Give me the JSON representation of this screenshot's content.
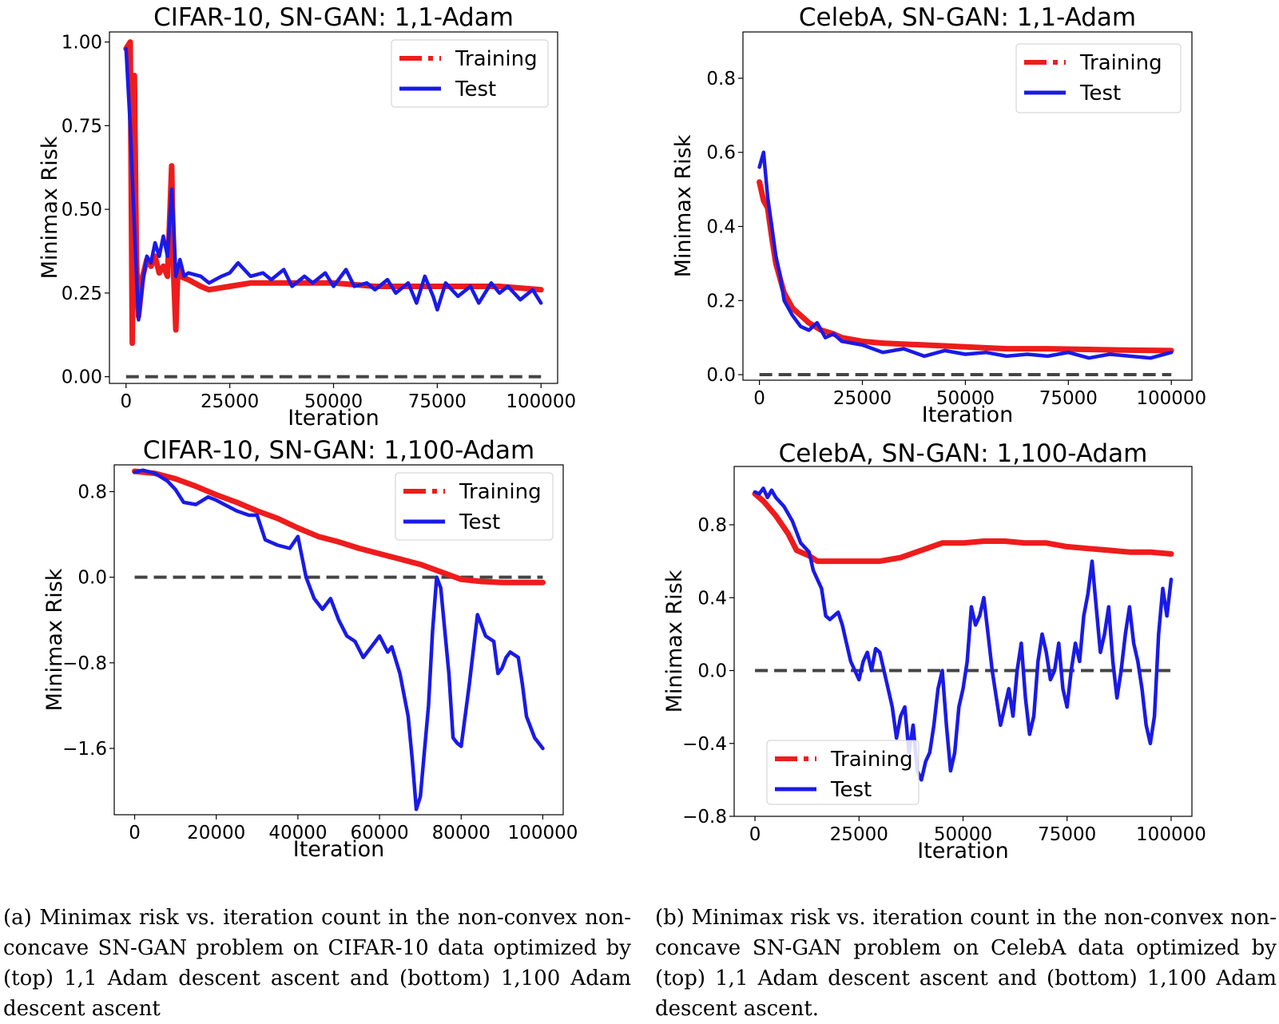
{
  "colors": {
    "training": "#ee1c1c",
    "test": "#1a1ae6",
    "zero_line": "#444444"
  },
  "chart_data": [
    {
      "type": "line",
      "title": "CIFAR-10, SN-GAN: 1,1-Adam",
      "xlabel": "Iteration",
      "ylabel": "Minimax Risk",
      "xlim": [
        -4000,
        104000
      ],
      "ylim": [
        -0.02,
        1.03
      ],
      "xticks": [
        0,
        25000,
        50000,
        75000,
        100000
      ],
      "xtick_labels": [
        "0",
        "25000",
        "50000",
        "75000",
        "100000"
      ],
      "yticks": [
        0.0,
        0.25,
        0.5,
        0.75,
        1.0
      ],
      "ytick_labels": [
        "0.00",
        "0.25",
        "0.50",
        "0.75",
        "1.00"
      ],
      "legend_position": "top-right",
      "zero_line": 0.0,
      "series": [
        {
          "name": "Training",
          "x": [
            0,
            1000,
            1500,
            2000,
            2500,
            3000,
            4000,
            5000,
            6000,
            7000,
            8000,
            9000,
            10000,
            11000,
            11500,
            12000,
            12500,
            13000,
            15000,
            18000,
            20000,
            25000,
            30000,
            40000,
            50000,
            60000,
            70000,
            80000,
            90000,
            100000
          ],
          "y": [
            0.98,
            1.0,
            0.1,
            0.9,
            0.35,
            0.18,
            0.3,
            0.35,
            0.33,
            0.36,
            0.31,
            0.33,
            0.3,
            0.63,
            0.3,
            0.14,
            0.33,
            0.3,
            0.29,
            0.27,
            0.26,
            0.27,
            0.28,
            0.28,
            0.28,
            0.27,
            0.27,
            0.27,
            0.27,
            0.26
          ]
        },
        {
          "name": "Test",
          "x": [
            0,
            1000,
            2000,
            3000,
            4000,
            5000,
            6000,
            7000,
            8000,
            9000,
            10000,
            11000,
            11500,
            12000,
            13000,
            14000,
            15000,
            18000,
            20000,
            23000,
            25000,
            27000,
            30000,
            33000,
            35000,
            38000,
            40000,
            43000,
            45000,
            48000,
            50000,
            53000,
            55000,
            58000,
            60000,
            63000,
            65000,
            68000,
            70000,
            72000,
            74000,
            75000,
            77000,
            80000,
            83000,
            85000,
            88000,
            90000,
            92000,
            95000,
            98000,
            100000
          ],
          "y": [
            0.98,
            0.75,
            0.45,
            0.17,
            0.28,
            0.36,
            0.34,
            0.4,
            0.36,
            0.42,
            0.36,
            0.56,
            0.45,
            0.3,
            0.35,
            0.3,
            0.31,
            0.3,
            0.28,
            0.3,
            0.31,
            0.34,
            0.3,
            0.31,
            0.29,
            0.32,
            0.27,
            0.3,
            0.28,
            0.31,
            0.27,
            0.32,
            0.27,
            0.28,
            0.26,
            0.29,
            0.25,
            0.28,
            0.22,
            0.3,
            0.24,
            0.2,
            0.28,
            0.24,
            0.27,
            0.22,
            0.28,
            0.25,
            0.27,
            0.23,
            0.26,
            0.22
          ]
        }
      ]
    },
    {
      "type": "line",
      "title": "CelebA, SN-GAN: 1,1-Adam",
      "xlabel": "Iteration",
      "ylabel": "Minimax Risk",
      "xlim": [
        -4000,
        105000
      ],
      "ylim": [
        -0.015,
        0.925
      ],
      "xticks": [
        0,
        25000,
        50000,
        75000,
        100000
      ],
      "xtick_labels": [
        "0",
        "25000",
        "50000",
        "75000",
        "100000"
      ],
      "yticks": [
        0.0,
        0.2,
        0.4,
        0.6,
        0.8
      ],
      "ytick_labels": [
        "0.0",
        "0.2",
        "0.4",
        "0.6",
        "0.8"
      ],
      "legend_position": "top-right",
      "zero_line": 0.0,
      "series": [
        {
          "name": "Training",
          "x": [
            0,
            1000,
            2000,
            3000,
            4000,
            6000,
            8000,
            10000,
            12000,
            15000,
            18000,
            20000,
            25000,
            30000,
            40000,
            50000,
            60000,
            70000,
            80000,
            90000,
            100000
          ],
          "y": [
            0.52,
            0.47,
            0.45,
            0.37,
            0.3,
            0.22,
            0.18,
            0.16,
            0.14,
            0.12,
            0.11,
            0.1,
            0.09,
            0.085,
            0.08,
            0.075,
            0.07,
            0.07,
            0.068,
            0.066,
            0.065
          ]
        },
        {
          "name": "Test",
          "x": [
            0,
            1000,
            2000,
            3000,
            4000,
            5000,
            6000,
            8000,
            10000,
            12000,
            14000,
            16000,
            18000,
            20000,
            25000,
            30000,
            35000,
            40000,
            45000,
            50000,
            55000,
            60000,
            65000,
            70000,
            75000,
            80000,
            85000,
            90000,
            95000,
            100000
          ],
          "y": [
            0.56,
            0.6,
            0.48,
            0.4,
            0.32,
            0.27,
            0.2,
            0.16,
            0.13,
            0.12,
            0.14,
            0.1,
            0.11,
            0.09,
            0.08,
            0.06,
            0.07,
            0.05,
            0.065,
            0.055,
            0.06,
            0.05,
            0.055,
            0.05,
            0.06,
            0.045,
            0.055,
            0.05,
            0.045,
            0.06
          ]
        }
      ]
    },
    {
      "type": "line",
      "title": "CIFAR-10, SN-GAN: 1,100-Adam",
      "xlabel": "Iteration",
      "ylabel": "Minimax Risk",
      "xlim": [
        -5000,
        105000
      ],
      "ylim": [
        -2.22,
        1.05
      ],
      "xticks": [
        0,
        20000,
        40000,
        60000,
        80000,
        100000
      ],
      "xtick_labels": [
        "0",
        "20000",
        "40000",
        "60000",
        "80000",
        "100000"
      ],
      "yticks": [
        -1.6,
        -0.8,
        0.0,
        0.8
      ],
      "ytick_labels": [
        "−1.6",
        "−0.8",
        "0.0",
        "0.8"
      ],
      "legend_position": "top-right",
      "zero_line": 0.0,
      "series": [
        {
          "name": "Training",
          "x": [
            0,
            5000,
            10000,
            15000,
            20000,
            25000,
            30000,
            35000,
            40000,
            45000,
            50000,
            55000,
            60000,
            65000,
            70000,
            75000,
            80000,
            85000,
            90000,
            95000,
            100000
          ],
          "y": [
            0.99,
            0.97,
            0.92,
            0.85,
            0.77,
            0.7,
            0.62,
            0.55,
            0.46,
            0.38,
            0.33,
            0.27,
            0.22,
            0.17,
            0.12,
            0.05,
            -0.02,
            -0.04,
            -0.05,
            -0.05,
            -0.05
          ]
        },
        {
          "name": "Test",
          "x": [
            0,
            2000,
            5000,
            8000,
            10000,
            12000,
            15000,
            18000,
            20000,
            22000,
            25000,
            28000,
            30000,
            32000,
            35000,
            38000,
            40000,
            42000,
            44000,
            46000,
            48000,
            50000,
            52000,
            54000,
            56000,
            58000,
            60000,
            62000,
            63000,
            65000,
            67000,
            68000,
            69000,
            70000,
            72000,
            73000,
            74000,
            75000,
            76000,
            77000,
            78000,
            79000,
            80000,
            82000,
            84000,
            85000,
            86000,
            88000,
            89000,
            90000,
            91000,
            92000,
            94000,
            95000,
            96000,
            98000,
            100000
          ],
          "y": [
            0.98,
            1.0,
            0.97,
            0.9,
            0.82,
            0.7,
            0.68,
            0.75,
            0.72,
            0.68,
            0.62,
            0.58,
            0.58,
            0.35,
            0.3,
            0.27,
            0.38,
            0.0,
            -0.2,
            -0.3,
            -0.2,
            -0.4,
            -0.55,
            -0.6,
            -0.75,
            -0.65,
            -0.55,
            -0.7,
            -0.65,
            -0.9,
            -1.3,
            -1.7,
            -2.17,
            -2.05,
            -1.2,
            -0.5,
            0.0,
            -0.1,
            -0.5,
            -0.9,
            -1.5,
            -1.55,
            -1.58,
            -1.0,
            -0.35,
            -0.45,
            -0.55,
            -0.6,
            -0.9,
            -0.85,
            -0.75,
            -0.7,
            -0.75,
            -1.0,
            -1.3,
            -1.5,
            -1.6
          ]
        }
      ]
    },
    {
      "type": "line",
      "title": "CelebA, SN-GAN: 1,100-Adam",
      "xlabel": "Iteration",
      "ylabel": "Minimax Risk",
      "xlim": [
        -5000,
        105000
      ],
      "ylim": [
        -0.8,
        1.12
      ],
      "xticks": [
        0,
        25000,
        50000,
        75000,
        100000
      ],
      "xtick_labels": [
        "0",
        "25000",
        "50000",
        "75000",
        "100000"
      ],
      "yticks": [
        -0.8,
        -0.4,
        0.0,
        0.4,
        0.8
      ],
      "ytick_labels": [
        "−0.8",
        "−0.4",
        "0.0",
        "0.4",
        "0.8"
      ],
      "legend_position": "bottom-left",
      "zero_line": 0.0,
      "series": [
        {
          "name": "Training",
          "x": [
            0,
            2000,
            5000,
            8000,
            10000,
            13000,
            15000,
            20000,
            25000,
            30000,
            35000,
            40000,
            45000,
            50000,
            55000,
            60000,
            65000,
            70000,
            75000,
            80000,
            85000,
            90000,
            95000,
            100000
          ],
          "y": [
            0.97,
            0.93,
            0.85,
            0.75,
            0.66,
            0.63,
            0.6,
            0.6,
            0.6,
            0.6,
            0.62,
            0.66,
            0.7,
            0.7,
            0.71,
            0.71,
            0.7,
            0.7,
            0.68,
            0.67,
            0.66,
            0.65,
            0.65,
            0.64
          ]
        },
        {
          "name": "Test",
          "x": [
            0,
            1000,
            2000,
            3000,
            4000,
            5000,
            7000,
            9000,
            11000,
            13000,
            14000,
            15000,
            16000,
            17000,
            18000,
            20000,
            21000,
            22000,
            23000,
            24000,
            25000,
            26000,
            27000,
            28000,
            29000,
            30000,
            31000,
            32000,
            33000,
            34000,
            35000,
            36000,
            37000,
            38000,
            39000,
            40000,
            41000,
            42000,
            43000,
            44000,
            45000,
            46000,
            47000,
            48000,
            49000,
            50000,
            51000,
            52000,
            53000,
            54000,
            55000,
            56000,
            57000,
            58000,
            59000,
            60000,
            61000,
            62000,
            63000,
            64000,
            65000,
            66000,
            67000,
            68000,
            69000,
            70000,
            71000,
            72000,
            73000,
            74000,
            75000,
            76000,
            77000,
            78000,
            79000,
            80000,
            81000,
            82000,
            83000,
            84000,
            85000,
            86000,
            87000,
            88000,
            89000,
            90000,
            91000,
            92000,
            93000,
            94000,
            95000,
            96000,
            97000,
            98000,
            99000,
            100000
          ],
          "y": [
            0.98,
            0.97,
            1.0,
            0.95,
            0.99,
            0.95,
            0.9,
            0.82,
            0.7,
            0.65,
            0.55,
            0.5,
            0.45,
            0.3,
            0.28,
            0.32,
            0.25,
            0.15,
            0.05,
            0.0,
            -0.05,
            0.05,
            0.1,
            0.0,
            0.12,
            0.1,
            0.0,
            -0.1,
            -0.2,
            -0.37,
            -0.25,
            -0.2,
            -0.45,
            -0.3,
            -0.55,
            -0.6,
            -0.5,
            -0.45,
            -0.3,
            -0.1,
            0.0,
            -0.3,
            -0.55,
            -0.45,
            -0.2,
            -0.1,
            0.05,
            0.35,
            0.25,
            0.3,
            0.4,
            0.2,
            0.0,
            -0.15,
            -0.3,
            -0.2,
            -0.1,
            -0.25,
            0.0,
            0.15,
            -0.15,
            -0.35,
            -0.25,
            0.05,
            0.2,
            0.1,
            -0.05,
            0.0,
            0.15,
            -0.1,
            -0.2,
            0.0,
            0.15,
            0.05,
            0.3,
            0.42,
            0.6,
            0.35,
            0.1,
            0.2,
            0.35,
            0.05,
            -0.15,
            0.0,
            0.2,
            0.35,
            0.15,
            0.05,
            -0.1,
            -0.3,
            -0.4,
            -0.25,
            0.2,
            0.45,
            0.3,
            0.5
          ]
        }
      ]
    }
  ],
  "captions": {
    "a": "(a) Minimax risk vs. iteration count in the non-convex non-concave SN-GAN problem on CIFAR-10 data optimized by (top) 1,1 Adam descent ascent and (bottom) 1,100 Adam descent ascent",
    "b": "(b) Minimax risk vs. iteration count in the non-convex non-concave SN-GAN problem on CelebA data optimized by (top) 1,1 Adam descent ascent and (bottom) 1,100 Adam descent ascent."
  }
}
